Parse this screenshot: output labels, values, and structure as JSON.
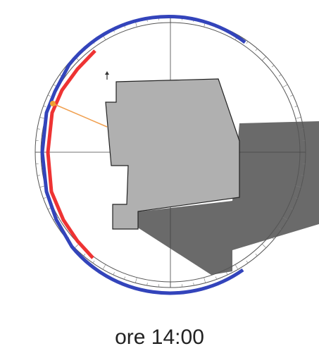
{
  "caption": "ore 14:00",
  "colors": {
    "dial_ring": "#555555",
    "crosshair": "#444444",
    "sun_path_blue": "#3344bb",
    "sun_path_red": "#ee3333",
    "sun_ray": "#f0a050",
    "sun_dot": "#f0a030",
    "building_fill": "#b0b0b0",
    "building_stroke": "#222222",
    "shadow_fill": "#6a6a6a"
  },
  "icons": {
    "north_marker": "arrow-up-icon"
  }
}
